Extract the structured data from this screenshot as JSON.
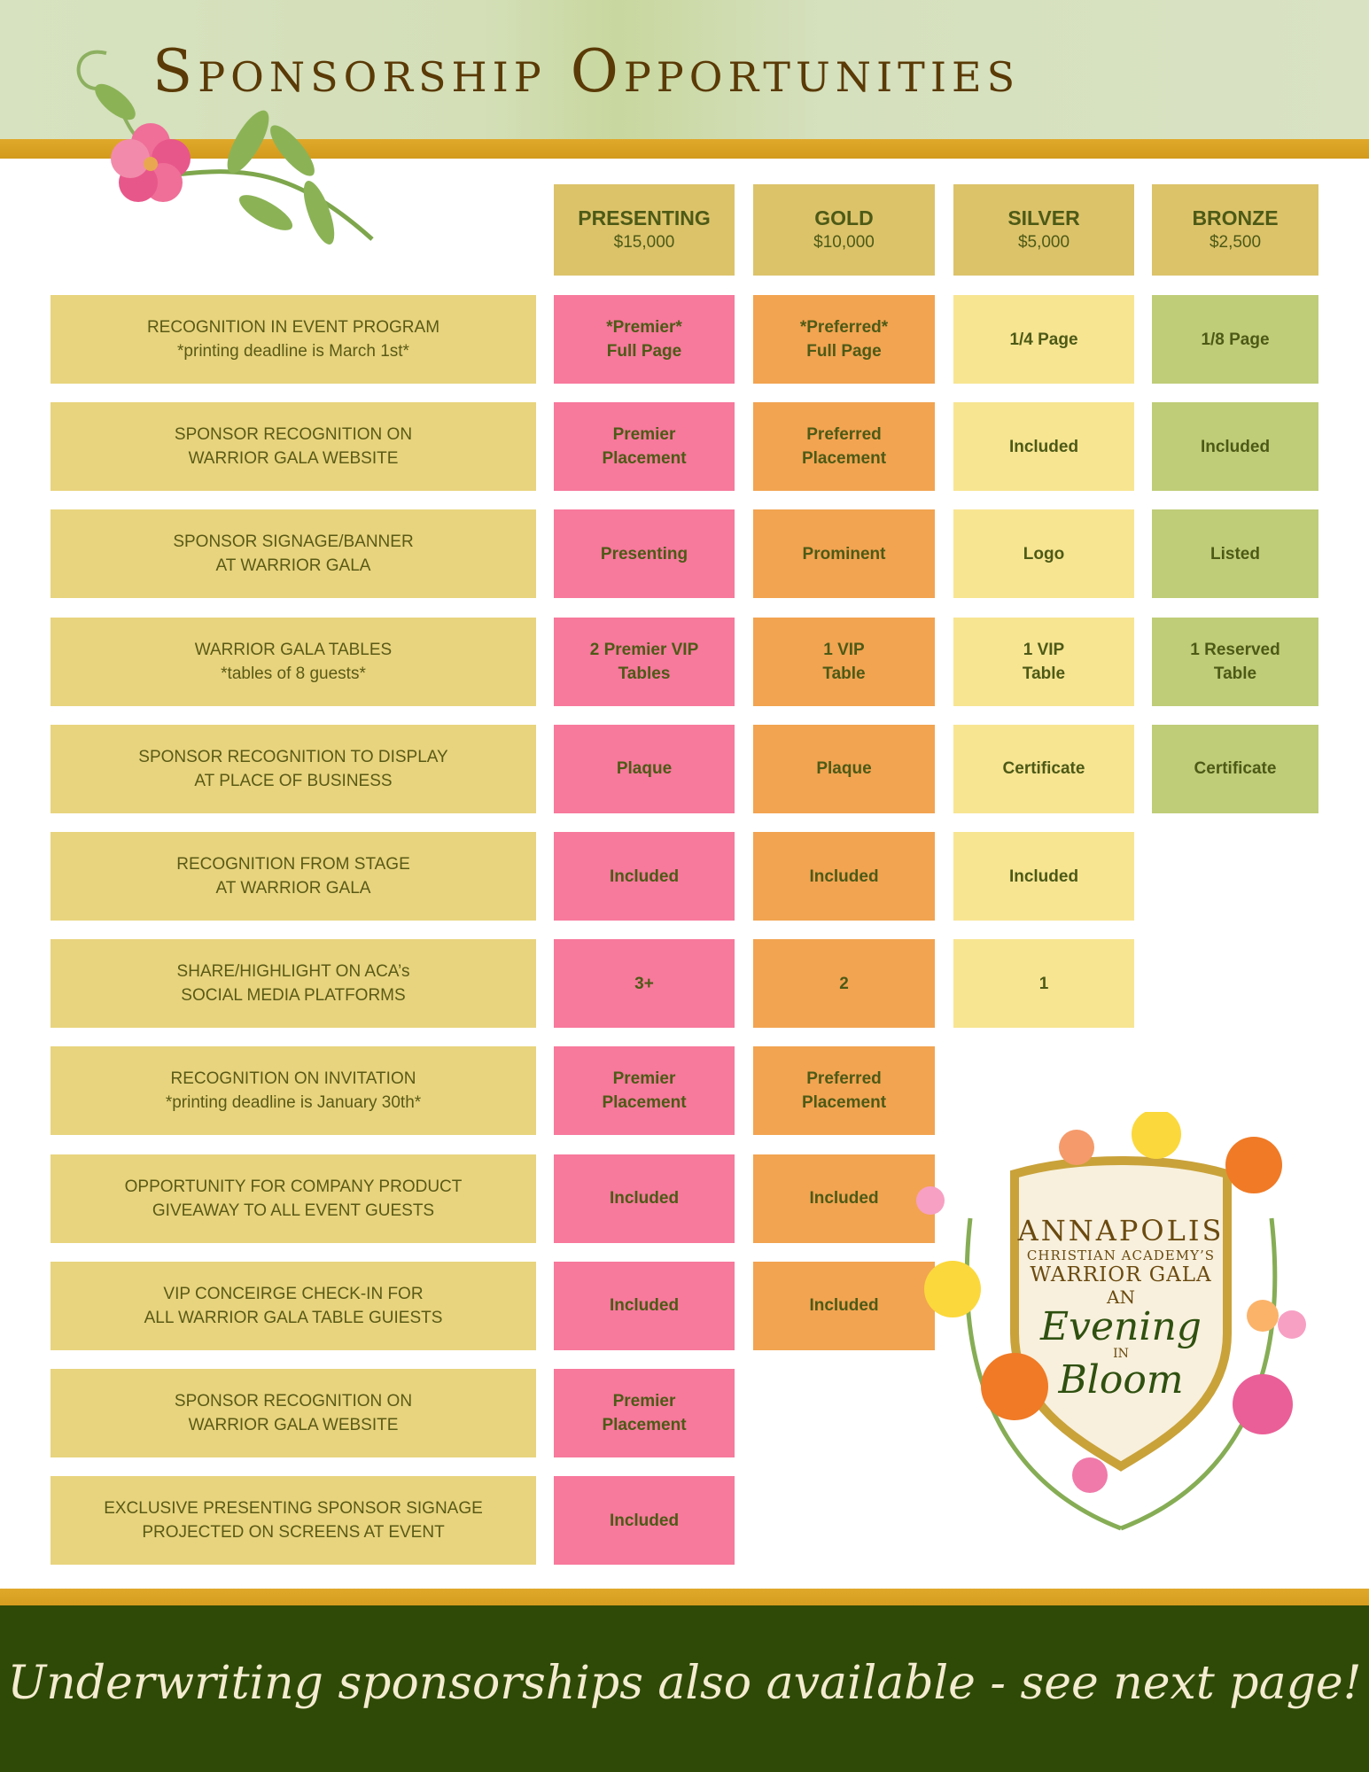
{
  "title": "Sponsorship Opportunities",
  "tiers": [
    {
      "name": "PRESENTING",
      "price": "$15,000"
    },
    {
      "name": "GOLD",
      "price": "$10,000"
    },
    {
      "name": "SILVER",
      "price": "$5,000"
    },
    {
      "name": "BRONZE",
      "price": "$2,500"
    }
  ],
  "rows": [
    {
      "label": [
        "RECOGNITION IN EVENT PROGRAM",
        "*printing deadline is March 1st*"
      ],
      "values": [
        [
          "*Premier*",
          "Full Page"
        ],
        [
          "*Preferred*",
          "Full Page"
        ],
        [
          "1/4 Page"
        ],
        [
          "1/8 Page"
        ]
      ]
    },
    {
      "label": [
        "SPONSOR RECOGNITION ON",
        "WARRIOR GALA WEBSITE"
      ],
      "values": [
        [
          "Premier",
          "Placement"
        ],
        [
          "Preferred",
          "Placement"
        ],
        [
          "Included"
        ],
        [
          "Included"
        ]
      ]
    },
    {
      "label": [
        "SPONSOR SIGNAGE/BANNER",
        "AT WARRIOR GALA"
      ],
      "values": [
        [
          "Presenting"
        ],
        [
          "Prominent"
        ],
        [
          "Logo"
        ],
        [
          "Listed"
        ]
      ]
    },
    {
      "label": [
        "WARRIOR GALA TABLES",
        "*tables of 8 guests*"
      ],
      "values": [
        [
          "2 Premier VIP",
          "Tables"
        ],
        [
          "1 VIP",
          "Table"
        ],
        [
          "1 VIP",
          "Table"
        ],
        [
          "1 Reserved",
          "Table"
        ]
      ]
    },
    {
      "label": [
        "SPONSOR RECOGNITION TO DISPLAY",
        "AT PLACE OF BUSINESS"
      ],
      "values": [
        [
          "Plaque"
        ],
        [
          "Plaque"
        ],
        [
          "Certificate"
        ],
        [
          "Certificate"
        ]
      ]
    },
    {
      "label": [
        "RECOGNITION FROM STAGE",
        "AT WARRIOR GALA"
      ],
      "values": [
        [
          "Included"
        ],
        [
          "Included"
        ],
        [
          "Included"
        ]
      ]
    },
    {
      "label": [
        "SHARE/HIGHLIGHT ON ACA’s",
        "SOCIAL MEDIA PLATFORMS"
      ],
      "values": [
        [
          "3+"
        ],
        [
          "2"
        ],
        [
          "1"
        ]
      ]
    },
    {
      "label": [
        "RECOGNITION ON INVITATION",
        "*printing deadline is January 30th*"
      ],
      "values": [
        [
          "Premier",
          "Placement"
        ],
        [
          "Preferred",
          "Placement"
        ]
      ]
    },
    {
      "label": [
        "OPPORTUNITY FOR COMPANY PRODUCT",
        "GIVEAWAY TO ALL EVENT GUESTS"
      ],
      "values": [
        [
          "Included"
        ],
        [
          "Included"
        ]
      ]
    },
    {
      "label": [
        "VIP CONCEIRGE CHECK-IN FOR",
        "ALL WARRIOR GALA TABLE GUIESTS"
      ],
      "values": [
        [
          "Included"
        ],
        [
          "Included"
        ]
      ]
    },
    {
      "label": [
        "SPONSOR RECOGNITION ON",
        "WARRIOR GALA WEBSITE"
      ],
      "values": [
        [
          "Premier",
          "Placement"
        ]
      ]
    },
    {
      "label": [
        "EXCLUSIVE PRESENTING SPONSOR SIGNAGE",
        "PROJECTED ON SCREENS AT EVENT"
      ],
      "values": [
        [
          "Included"
        ]
      ]
    }
  ],
  "emblem": {
    "line1": "ANNAPOLIS",
    "line2": "CHRISTIAN ACADEMY’S",
    "line3": "WARRIOR GALA",
    "line4": "AN",
    "line5": "Evening",
    "line6": "IN",
    "line7": "Bloom"
  },
  "footer": "Underwriting sponsorships also available - see next page!",
  "colors": {
    "presenting": "#f7799c",
    "gold": "#f2a451",
    "silver": "#f7e592",
    "bronze": "#bfcd78",
    "label": "#e8d47e",
    "header": "#dcc36a",
    "footer": "#2f4a06"
  }
}
